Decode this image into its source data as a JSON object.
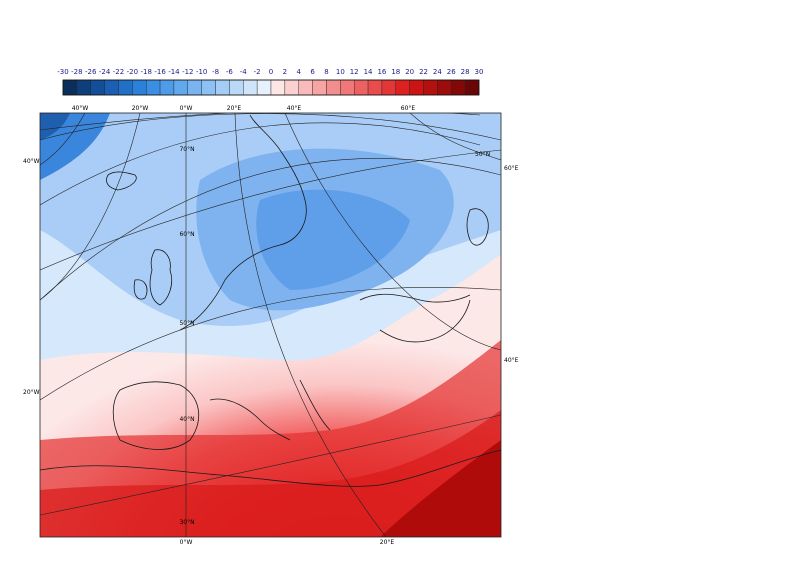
{
  "colorbar": {
    "labels": [
      "-30",
      "-28",
      "-26",
      "-24",
      "-22",
      "-20",
      "-18",
      "-16",
      "-14",
      "-12",
      "-10",
      "-8",
      "-6",
      "-4",
      "-2",
      "0",
      "2",
      "4",
      "6",
      "8",
      "10",
      "12",
      "14",
      "16",
      "18",
      "20",
      "22",
      "24",
      "26",
      "28",
      "30"
    ],
    "colors": [
      "#0b2e5b",
      "#0f3f7a",
      "#134e99",
      "#1a5fb3",
      "#2170c8",
      "#2b80d9",
      "#3b8fe3",
      "#4e9ce9",
      "#62a8ed",
      "#78b4f0",
      "#8ec1f3",
      "#a4cdf6",
      "#bad9f8",
      "#d0e5fa",
      "#e6f1fd",
      "#fde6e6",
      "#fbd0d0",
      "#f8baba",
      "#f6a4a4",
      "#f38e8e",
      "#f07878",
      "#ec6262",
      "#e84c4c",
      "#e33636",
      "#dd2020",
      "#cc1414",
      "#b51010",
      "#9c0c0c",
      "#830909",
      "#6a0606"
    ]
  },
  "map": {
    "grid_labels": {
      "top": [
        "40°W",
        "20°W",
        "0°W",
        "20°E",
        "40°E",
        "60°E"
      ],
      "left": [
        "40°W",
        "20°W"
      ],
      "right": [
        "60°E",
        "40°E"
      ],
      "bottom": [
        "0°W",
        "20°E"
      ],
      "lat_right": "50°N",
      "lat_inner": [
        "70°N",
        "60°N",
        "50°N",
        "40°N",
        "30°N"
      ]
    },
    "color_scale": "temperature anomaly diverging blue-red"
  }
}
